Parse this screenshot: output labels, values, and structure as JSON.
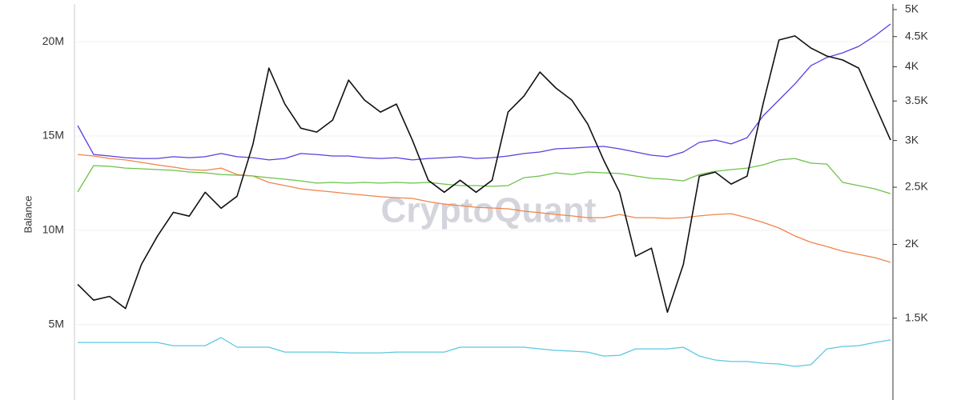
{
  "chart_data": {
    "type": "line",
    "y_label": "Balance",
    "watermark": "CryptoQuant",
    "ylim": [
      1000000,
      22000000
    ],
    "yticks": [
      {
        "value": 5000000,
        "label": "5M"
      },
      {
        "value": 10000000,
        "label": "10M"
      },
      {
        "value": 15000000,
        "label": "15M"
      },
      {
        "value": 20000000,
        "label": "20M"
      }
    ],
    "y2lim": [
      1090,
      5110
    ],
    "y2scale": "log",
    "y2ticks": [
      {
        "value": 1500,
        "label": "1.5K"
      },
      {
        "value": 2000,
        "label": "2K"
      },
      {
        "value": 2500,
        "label": "2.5K"
      },
      {
        "value": 3000,
        "label": "3K"
      },
      {
        "value": 3500,
        "label": "3.5K"
      },
      {
        "value": 4000,
        "label": "4K"
      },
      {
        "value": 4500,
        "label": "4.5K"
      },
      {
        "value": 5000,
        "label": "5K"
      }
    ],
    "grid": true,
    "series": [
      {
        "color": "#5bc8e0",
        "values": [
          4050000,
          4050000,
          4050000,
          4050000,
          4050000,
          4050000,
          3880000,
          3880000,
          3880000,
          4310000,
          3800000,
          3800000,
          3800000,
          3540000,
          3540000,
          3540000,
          3540000,
          3500000,
          3500000,
          3500000,
          3540000,
          3540000,
          3540000,
          3540000,
          3800000,
          3800000,
          3800000,
          3800000,
          3800000,
          3710000,
          3630000,
          3590000,
          3540000,
          3330000,
          3370000,
          3710000,
          3710000,
          3710000,
          3800000,
          3330000,
          3120000,
          3040000,
          3040000,
          2950000,
          2910000,
          2780000,
          2870000,
          3710000,
          3840000,
          3880000,
          4050000,
          4180000
        ]
      },
      {
        "color": "#f0844a",
        "values": [
          14020000,
          13940000,
          13810000,
          13730000,
          13600000,
          13470000,
          13350000,
          13220000,
          13180000,
          13300000,
          12960000,
          12880000,
          12540000,
          12370000,
          12200000,
          12110000,
          12030000,
          11940000,
          11860000,
          11780000,
          11730000,
          11690000,
          11520000,
          11390000,
          11310000,
          11220000,
          11180000,
          11140000,
          11010000,
          10930000,
          10840000,
          10760000,
          10670000,
          10670000,
          10840000,
          10670000,
          10670000,
          10630000,
          10670000,
          10760000,
          10840000,
          10880000,
          10670000,
          10420000,
          10120000,
          9700000,
          9360000,
          9140000,
          8890000,
          8720000,
          8550000,
          8300000
        ]
      },
      {
        "color": "#6cc24a",
        "values": [
          12030000,
          13430000,
          13390000,
          13300000,
          13260000,
          13220000,
          13180000,
          13090000,
          13050000,
          12960000,
          12920000,
          12880000,
          12790000,
          12710000,
          12620000,
          12500000,
          12540000,
          12500000,
          12540000,
          12500000,
          12540000,
          12500000,
          12540000,
          12450000,
          12370000,
          12370000,
          12330000,
          12370000,
          12790000,
          12880000,
          13050000,
          12960000,
          13090000,
          13050000,
          13010000,
          12880000,
          12750000,
          12710000,
          12620000,
          12960000,
          13130000,
          13220000,
          13300000,
          13470000,
          13730000,
          13810000,
          13560000,
          13510000,
          12540000,
          12370000,
          12200000,
          11940000
        ]
      },
      {
        "color": "#5b3ee0",
        "values": [
          15550000,
          14020000,
          13940000,
          13850000,
          13810000,
          13810000,
          13900000,
          13850000,
          13900000,
          14070000,
          13900000,
          13850000,
          13730000,
          13810000,
          14070000,
          14020000,
          13940000,
          13940000,
          13850000,
          13810000,
          13850000,
          13730000,
          13810000,
          13850000,
          13900000,
          13810000,
          13850000,
          13940000,
          14070000,
          14150000,
          14320000,
          14360000,
          14410000,
          14450000,
          14320000,
          14150000,
          13980000,
          13900000,
          14150000,
          14660000,
          14790000,
          14580000,
          14910000,
          16060000,
          16910000,
          17760000,
          18730000,
          19160000,
          19410000,
          19750000,
          20300000,
          20940000
        ]
      },
      {
        "color": "#111111",
        "axis": "y2",
        "values": [
          1712,
          1609,
          1633,
          1558,
          1850,
          2065,
          2267,
          2233,
          2452,
          2303,
          2414,
          2958,
          3980,
          3458,
          3148,
          3100,
          3249,
          3798,
          3512,
          3352,
          3458,
          3005,
          2569,
          2452,
          2569,
          2452,
          2569,
          3352,
          3568,
          3918,
          3682,
          3512,
          3199,
          2779,
          2452,
          1910,
          1971,
          1535,
          1850,
          2610,
          2652,
          2531,
          2610,
          3458,
          4440,
          4511,
          4304,
          4172,
          4107,
          3980,
          3458,
          3005
        ]
      }
    ]
  }
}
